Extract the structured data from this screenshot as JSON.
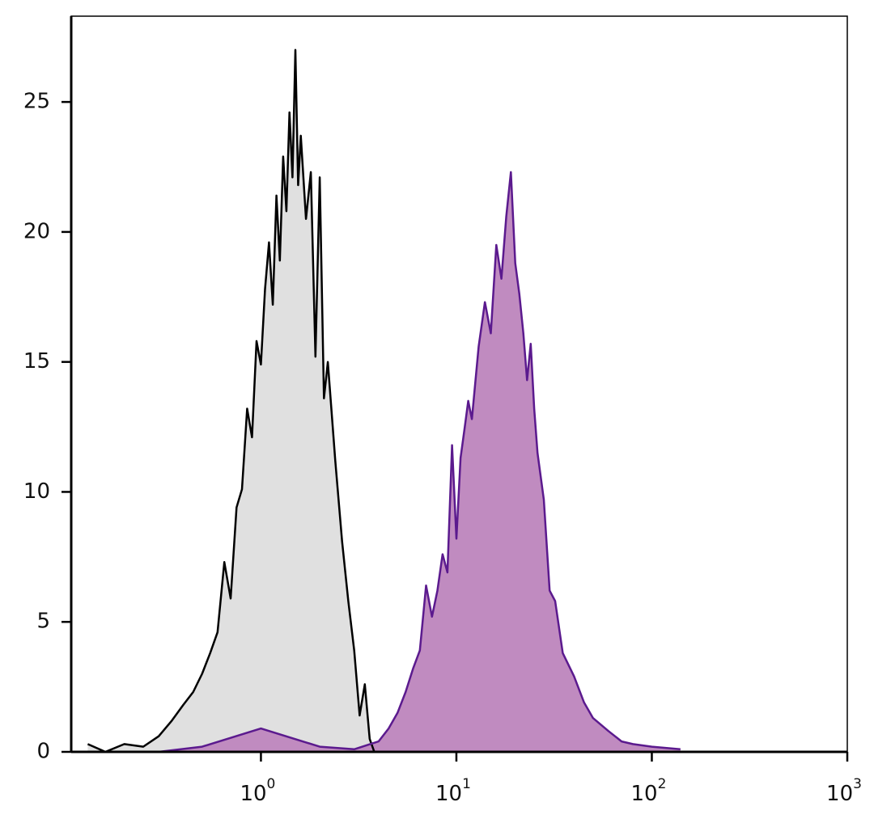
{
  "chart_data": {
    "type": "histogram-line",
    "xscale": "log",
    "xlim": [
      0.107,
      1000
    ],
    "ylim": [
      0,
      28.3
    ],
    "xticks": [
      {
        "value": 1,
        "label": "10",
        "power": "0"
      },
      {
        "value": 10,
        "label": "10",
        "power": "1"
      },
      {
        "value": 100,
        "label": "10",
        "power": "2"
      },
      {
        "value": 1000,
        "label": "10",
        "power": "3"
      }
    ],
    "yticks": [
      0,
      5,
      10,
      15,
      20,
      25
    ],
    "series": [
      {
        "stroke": "#000000",
        "color": "#e0e0e0",
        "x": [
          0.13,
          0.16,
          0.2,
          0.25,
          0.3,
          0.35,
          0.4,
          0.45,
          0.5,
          0.55,
          0.6,
          0.65,
          0.7,
          0.75,
          0.8,
          0.85,
          0.9,
          0.95,
          1.0,
          1.05,
          1.1,
          1.15,
          1.2,
          1.25,
          1.3,
          1.35,
          1.4,
          1.45,
          1.5,
          1.55,
          1.6,
          1.7,
          1.8,
          1.9,
          2.0,
          2.1,
          2.2,
          2.4,
          2.6,
          2.8,
          3.0,
          3.2,
          3.4,
          3.6,
          3.8
        ],
        "values": [
          0.3,
          0,
          0.3,
          0.2,
          0.6,
          1.2,
          1.8,
          2.3,
          3.0,
          3.8,
          4.6,
          7.3,
          5.9,
          9.4,
          10.1,
          13.2,
          12.1,
          15.8,
          14.9,
          17.8,
          19.6,
          17.2,
          21.4,
          18.9,
          22.9,
          20.8,
          24.6,
          22.1,
          27.0,
          21.8,
          23.7,
          20.5,
          22.3,
          15.2,
          22.1,
          13.6,
          15.0,
          11.2,
          8.1,
          5.8,
          3.9,
          1.4,
          2.6,
          0.5,
          0
        ]
      },
      {
        "stroke": "#5b1a8e",
        "color": "#c08bc0",
        "x": [
          0.3,
          0.5,
          1.0,
          2,
          3,
          4,
          4.5,
          5,
          5.5,
          6,
          6.5,
          7,
          7.5,
          8,
          8.5,
          9,
          9.5,
          10,
          10.5,
          11,
          11.5,
          12,
          13,
          14,
          15,
          16,
          17,
          18,
          19,
          20,
          21,
          22,
          23,
          24,
          25,
          26,
          28,
          30,
          32,
          35,
          40,
          45,
          50,
          60,
          70,
          80,
          100,
          140
        ],
        "values": [
          0,
          0.2,
          0.9,
          0.2,
          0.1,
          0.4,
          0.9,
          1.5,
          2.3,
          3.2,
          3.9,
          6.4,
          5.2,
          6.2,
          7.6,
          6.9,
          11.8,
          8.2,
          11.3,
          12.4,
          13.5,
          12.8,
          15.6,
          17.3,
          16.1,
          19.5,
          18.2,
          20.6,
          22.3,
          18.8,
          17.6,
          16.1,
          14.3,
          15.7,
          13.2,
          11.5,
          9.7,
          6.2,
          5.8,
          3.8,
          2.9,
          1.9,
          1.3,
          0.8,
          0.4,
          0.3,
          0.2,
          0.1
        ]
      }
    ]
  }
}
